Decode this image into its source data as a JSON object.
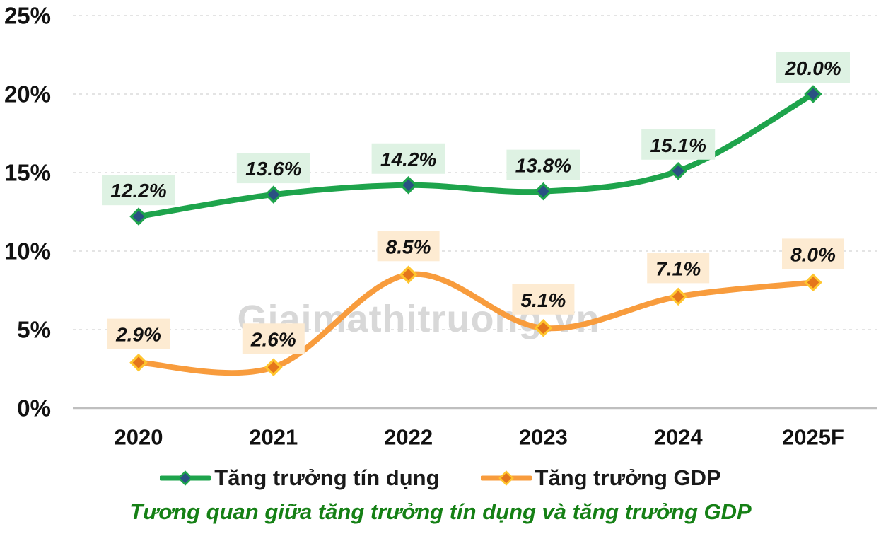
{
  "title": {
    "text": "Tương quan giữa tăng trưởng tín dụng và tăng trưởng GDP",
    "color": "#158015"
  },
  "watermark": {
    "text": "Giaimathitruong.vn",
    "color": "#d8d8d8"
  },
  "chart_data": {
    "type": "line",
    "categories": [
      "2020",
      "2021",
      "2022",
      "2023",
      "2024",
      "2025F"
    ],
    "series": [
      {
        "name": "Tăng trưởng tín dụng",
        "values": [
          12.2,
          13.6,
          14.2,
          13.8,
          15.1,
          20.0
        ],
        "labels": [
          "12.2%",
          "13.6%",
          "14.2%",
          "13.8%",
          "15.1%",
          "20.0%"
        ],
        "line_color": "#1ea44c",
        "marker_fill": "#2a5183",
        "marker_stroke": "#1ea44c",
        "label_bg": "#def2e3",
        "label_gap": 16
      },
      {
        "name": "Tăng trưởng GDP",
        "values": [
          2.9,
          2.6,
          8.5,
          5.1,
          7.1,
          8.0
        ],
        "labels": [
          "2.9%",
          "2.6%",
          "8.5%",
          "5.1%",
          "7.1%",
          "8.0%"
        ],
        "line_color": "#f89c3d",
        "marker_fill": "#e4761c",
        "marker_stroke": "#ffc52e",
        "label_bg": "#fdebd2",
        "label_gap": 19
      }
    ],
    "y_tick_labels": [
      "0%",
      "5%",
      "10%",
      "15%",
      "20%",
      "25%"
    ],
    "y_tick_values": [
      0,
      5,
      10,
      15,
      20,
      25
    ],
    "ylim": [
      0,
      25
    ],
    "xlabel": "",
    "ylabel": "",
    "grid": "horizontal-dashed",
    "grid_color": "#dcdcdc",
    "axis_line_color": "#bfbfbf",
    "tick_label_color": "#111111",
    "value_label_color": "#111111",
    "legend_position": "bottom",
    "smooth": true
  }
}
